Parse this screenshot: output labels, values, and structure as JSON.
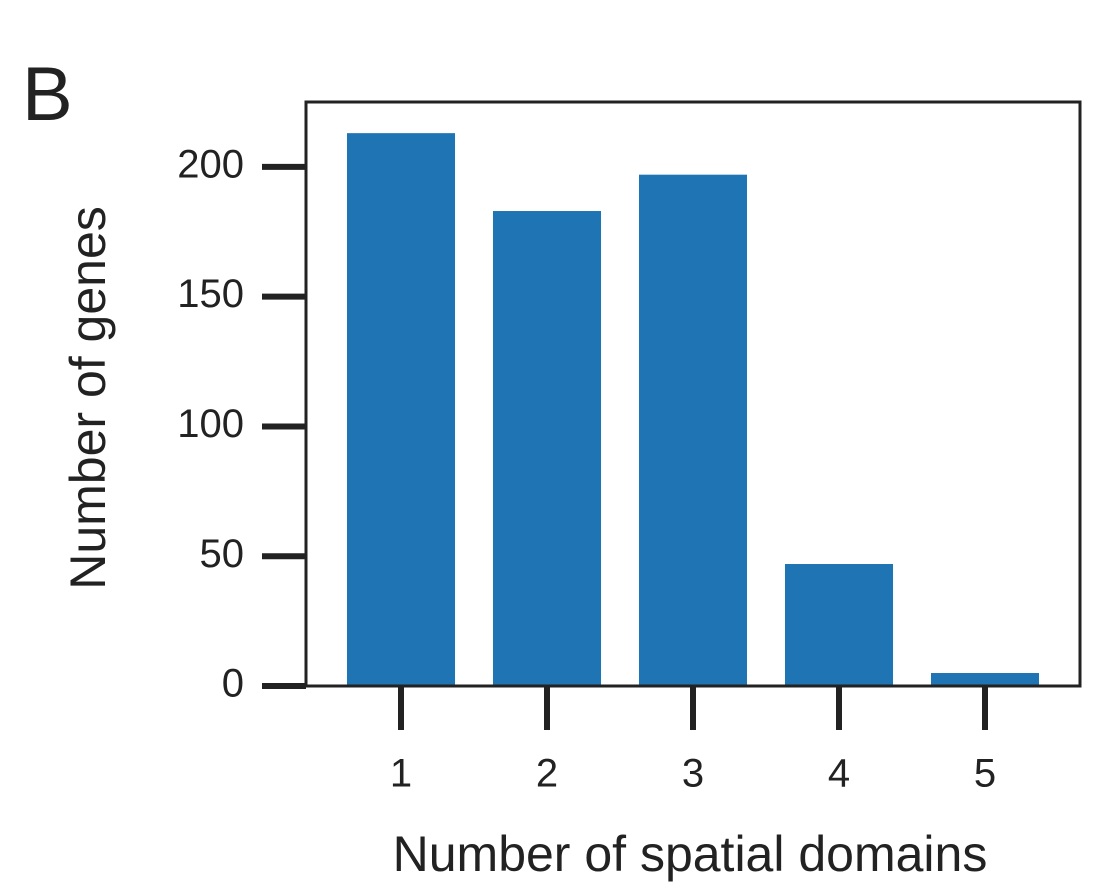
{
  "chart_data": {
    "type": "bar",
    "panel_label": "B",
    "x_label": "Number of spatial domains",
    "y_label": "Number of genes",
    "categories": [
      "1",
      "2",
      "3",
      "4",
      "5"
    ],
    "values": [
      213,
      183,
      197,
      47,
      5
    ],
    "color": "#1f74b3",
    "ylim": [
      0,
      225
    ],
    "yticks": [
      0,
      50,
      100,
      150,
      200
    ],
    "grid": false
  }
}
